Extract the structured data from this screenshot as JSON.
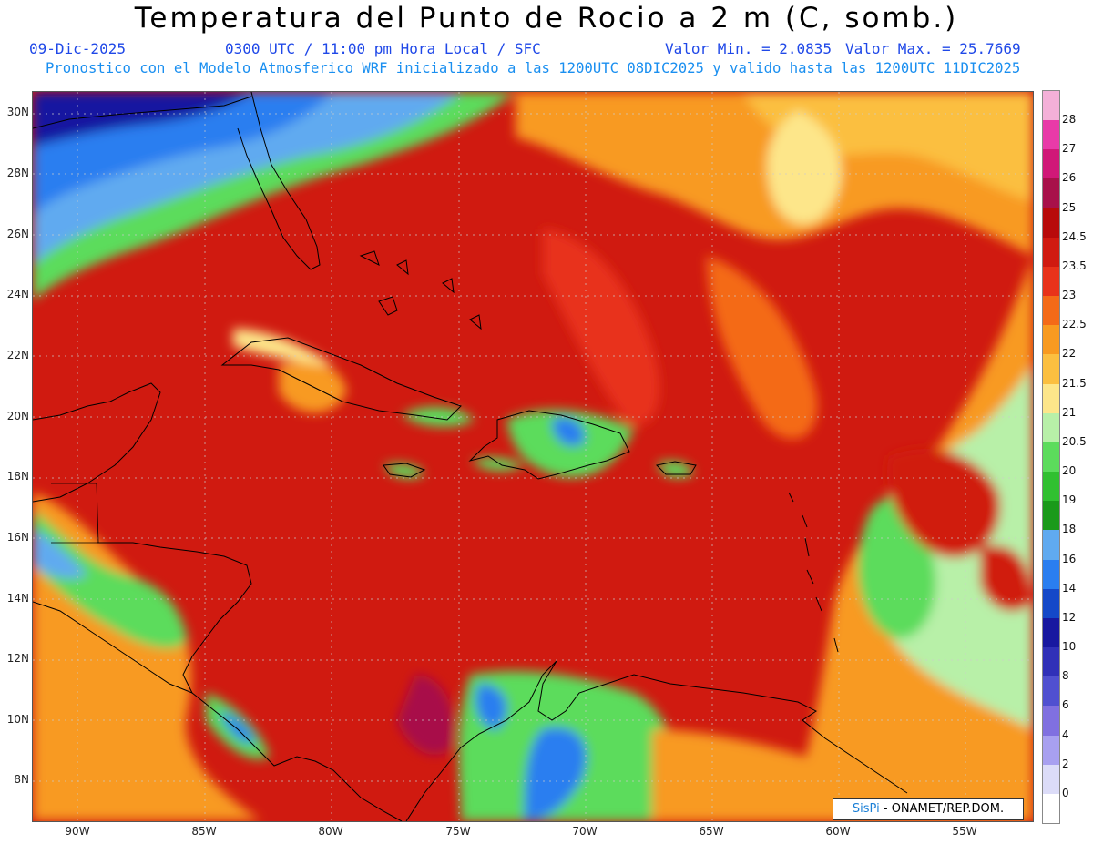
{
  "title": "Temperatura del Punto de Rocio a 2 m (C, somb.)",
  "header": {
    "date": "09-Dic-2025",
    "time": "0300 UTC / 11:00 pm Hora Local / SFC",
    "min_label": "Valor Min. = 2.0835",
    "max_label": "Valor Max. = 25.7669",
    "model_line": "Pronostico con el Modelo Atmosferico WRF inicializado a las 1200UTC_08DIC2025 y valido hasta las  1200UTC_11DIC2025"
  },
  "colors": {
    "date": "#1f48e8",
    "model_line": "#1a8ff0"
  },
  "lat_labels": [
    "30N",
    "28N",
    "26N",
    "24N",
    "22N",
    "20N",
    "18N",
    "16N",
    "14N",
    "12N",
    "10N",
    "8N"
  ],
  "lon_labels": [
    "90W",
    "85W",
    "80W",
    "75W",
    "70W",
    "65W",
    "60W",
    "55W"
  ],
  "colorbar": {
    "labels": [
      "28",
      "27",
      "26",
      "25",
      "24.5",
      "23.5",
      "23",
      "22.5",
      "22",
      "21.5",
      "21",
      "20.5",
      "20",
      "19",
      "18",
      "16",
      "14",
      "12",
      "10",
      "8",
      "6",
      "4",
      "2",
      "0"
    ],
    "colors": [
      "#f4b0d8",
      "#e83aa8",
      "#d01878",
      "#a8104a",
      "#b80a0a",
      "#d01a10",
      "#e8321a",
      "#f46a18",
      "#f89a20",
      "#fbbf40",
      "#fde68a",
      "#b8f0a8",
      "#5cdc5c",
      "#30c030",
      "#1a9a1a",
      "#60aaf0",
      "#2a7ef0",
      "#1448c8",
      "#1818a0",
      "#3030b8",
      "#5050d0",
      "#8070e0",
      "#a8a0f0",
      "#dcdcf8",
      "#ffffff"
    ]
  },
  "credit": {
    "logo": "SisPi",
    "text": " - ONAMET/REP.DOM."
  }
}
